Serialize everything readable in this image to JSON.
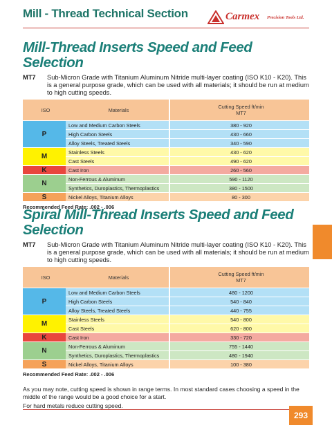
{
  "header": {
    "title": "Mill - Thread Technical Section",
    "logo_name": "Carmex",
    "logo_tagline": "Precision Tools Ltd."
  },
  "sections": [
    {
      "title": "Mill-Thread Inserts Speed and Feed Selection",
      "grade": "MT7",
      "description": "Sub-Micron Grade with Titanium Aluminum Nitride multi-layer coating (ISO K10 - K20). This is a general purpose grade, which can be used with all materials; it should be run at medium to high cutting speeds.",
      "table": {
        "columns": [
          "ISO",
          "Materials",
          "Cutting Speed ft/min",
          "MT7"
        ],
        "groups": [
          {
            "iso": "P",
            "rows": [
              {
                "material": "Low and Medium Carbon Steels",
                "speed": "380 -  920"
              },
              {
                "material": "High Carbon Steels",
                "speed": "430 -  660"
              },
              {
                "material": "Alloy Steels, Treated Steels",
                "speed": "340 -  590"
              }
            ]
          },
          {
            "iso": "M",
            "rows": [
              {
                "material": "Stainless Steels",
                "speed": "430 -  620"
              },
              {
                "material": "Cast Steels",
                "speed": "490 -  620"
              }
            ]
          },
          {
            "iso": "K",
            "rows": [
              {
                "material": "Cast Iron",
                "speed": "260 -  560"
              }
            ]
          },
          {
            "iso": "N",
            "rows": [
              {
                "material": "Non-Ferrous & Aluminum",
                "speed": "590 - 1120"
              },
              {
                "material": "Synthetics, Duroplastics, Thermoplastics",
                "speed": "380 - 1500"
              }
            ]
          },
          {
            "iso": "S",
            "rows": [
              {
                "material": "Nickel Alloys, Titanium Alloys",
                "speed": "80 -  300"
              }
            ]
          }
        ]
      },
      "feed_rate": "Recommended Feed Rate: .002 - .006"
    },
    {
      "title": "Spiral Mill-Thread Inserts Speed and Feed Selection",
      "grade": "MT7",
      "description": "Sub-Micron Grade with Titanium Aluminum Nitride multi-layer coating (ISO K10 - K20). This is a general purpose grade, which can be used with all materials; it should be run at medium to high cutting speeds.",
      "table": {
        "columns": [
          "ISO",
          "Materials",
          "Cutting Speed ft/min",
          "MT7"
        ],
        "groups": [
          {
            "iso": "P",
            "rows": [
              {
                "material": "Low and Medium Carbon Steels",
                "speed": "480 - 1200"
              },
              {
                "material": "High Carbon Steels",
                "speed": "540 -  840"
              },
              {
                "material": "Alloy Steels, Treated Steels",
                "speed": "440 -  755"
              }
            ]
          },
          {
            "iso": "M",
            "rows": [
              {
                "material": "Stainless Steels",
                "speed": "540 -  800"
              },
              {
                "material": "Cast Steels",
                "speed": "620 -  800"
              }
            ]
          },
          {
            "iso": "K",
            "rows": [
              {
                "material": "Cast Iron",
                "speed": "330 -  720"
              }
            ]
          },
          {
            "iso": "N",
            "rows": [
              {
                "material": "Non-Ferrous & Aluminum",
                "speed": "755 - 1440"
              },
              {
                "material": "Synthetics, Duroplastics, Thermoplastics",
                "speed": "480 - 1940"
              }
            ]
          },
          {
            "iso": "S",
            "rows": [
              {
                "material": "Nickel Alloys, Titanium Alloys",
                "speed": "100 -  380"
              }
            ]
          }
        ]
      },
      "feed_rate": "Recommended Feed Rate: .002 - .006"
    }
  ],
  "notes": [
    "As you may note, cutting speed is shown in range terms. In most standard cases choosing a speed in the middle of the range would be a good choice for a start.",
    "For hard metals reduce cutting speed."
  ],
  "page_number": "293"
}
